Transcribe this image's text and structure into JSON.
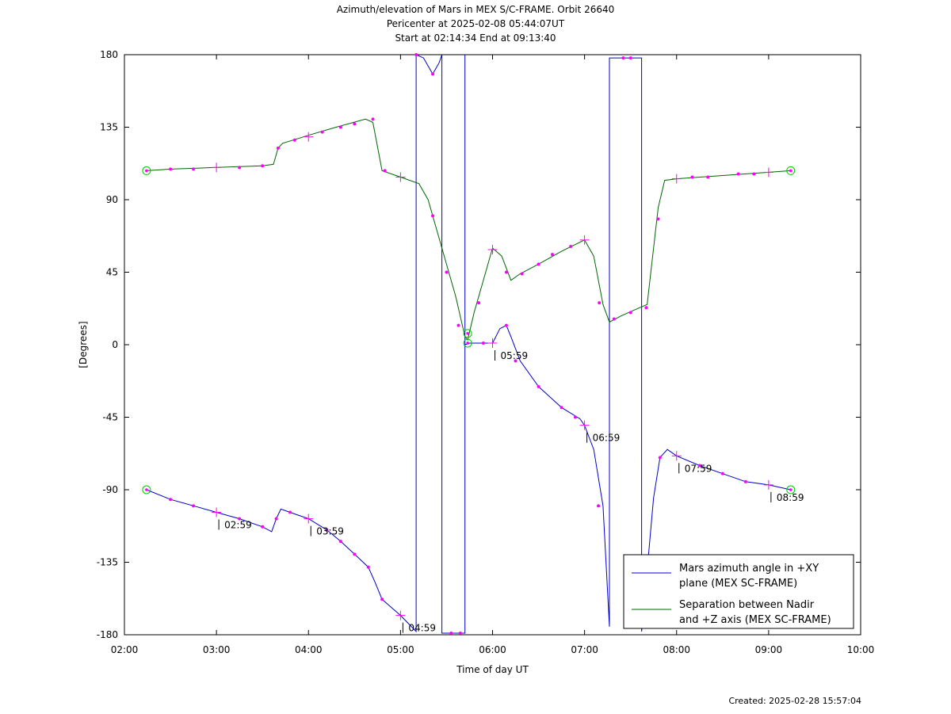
{
  "title_lines": [
    "Azimuth/elevation of Mars in MEX S/C-FRAME.  Orbit 26640",
    "Pericenter at 2025-02-08 05:44:07UT",
    "Start at 02:14:34 End at 09:13:40"
  ],
  "created": "Created: 2025-02-28 15:57:04",
  "colors": {
    "azimuth": "#0000cc",
    "separation": "#006600",
    "marker": "#ff00ff",
    "endpoint": "#00cc00"
  },
  "chart_data": {
    "type": "line",
    "title": "Azimuth/elevation of Mars in MEX S/C-FRAME.  Orbit 26640",
    "xlabel": "Time of day UT",
    "ylabel": "[Degrees]",
    "xlim": [
      2.0,
      10.0
    ],
    "ylim": [
      -180,
      180
    ],
    "x_ticks": [
      {
        "v": 2,
        "label": "02:00"
      },
      {
        "v": 3,
        "label": "03:00"
      },
      {
        "v": 4,
        "label": "04:00"
      },
      {
        "v": 5,
        "label": "05:00"
      },
      {
        "v": 6,
        "label": "06:00"
      },
      {
        "v": 7,
        "label": "07:00"
      },
      {
        "v": 8,
        "label": "08:00"
      },
      {
        "v": 9,
        "label": "09:00"
      },
      {
        "v": 10,
        "label": "10:00"
      }
    ],
    "y_ticks": [
      {
        "v": 180,
        "label": "180"
      },
      {
        "v": 135,
        "label": "135"
      },
      {
        "v": 90,
        "label": "90"
      },
      {
        "v": 45,
        "label": "45"
      },
      {
        "v": 0,
        "label": "0"
      },
      {
        "v": -45,
        "label": "-45"
      },
      {
        "v": -90,
        "label": "-90"
      },
      {
        "v": -135,
        "label": "-135"
      },
      {
        "v": -180,
        "label": "-180"
      }
    ],
    "legend_position": "bottom-right",
    "series": [
      {
        "name": "Mars azimuth angle in +XY plane (MEX SC-FRAME)",
        "legend_lines": [
          "Mars azimuth angle in +XY",
          "plane (MEX SC-FRAME)"
        ],
        "color": "#0000cc",
        "points": [
          [
            2.24,
            -90
          ],
          [
            2.5,
            -96
          ],
          [
            2.75,
            -100
          ],
          [
            3.0,
            -104
          ],
          [
            3.25,
            -108
          ],
          [
            3.5,
            -113
          ],
          [
            3.6,
            -116
          ],
          [
            3.65,
            -108
          ],
          [
            3.7,
            -102
          ],
          [
            3.8,
            -104
          ],
          [
            4.0,
            -108
          ],
          [
            4.2,
            -115
          ],
          [
            4.35,
            -122
          ],
          [
            4.5,
            -130
          ],
          [
            4.65,
            -138
          ],
          [
            4.72,
            -147
          ],
          [
            4.8,
            -158
          ],
          [
            5.0,
            -168
          ],
          [
            5.17,
            -178
          ],
          [
            5.17,
            180
          ],
          [
            5.25,
            178
          ],
          [
            5.35,
            168
          ],
          [
            5.42,
            175
          ],
          [
            5.45,
            180
          ],
          [
            5.45,
            -179
          ],
          [
            5.55,
            -179
          ],
          [
            5.65,
            -179
          ],
          [
            5.7,
            -179
          ],
          [
            5.7,
            180
          ],
          [
            5.7,
            0
          ],
          [
            5.75,
            1
          ],
          [
            5.9,
            1
          ],
          [
            6.0,
            1
          ],
          [
            6.08,
            10
          ],
          [
            6.15,
            12
          ],
          [
            6.2,
            5
          ],
          [
            6.3,
            -10
          ],
          [
            6.5,
            -26
          ],
          [
            6.75,
            -39
          ],
          [
            6.95,
            -46
          ],
          [
            7.0,
            -50
          ],
          [
            7.1,
            -65
          ],
          [
            7.2,
            -100
          ],
          [
            7.27,
            -175
          ],
          [
            7.27,
            178
          ],
          [
            7.5,
            178
          ],
          [
            7.62,
            178
          ],
          [
            7.62,
            -178
          ],
          [
            7.68,
            -140
          ],
          [
            7.75,
            -95
          ],
          [
            7.82,
            -70
          ],
          [
            7.9,
            -65
          ],
          [
            8.0,
            -69
          ],
          [
            8.25,
            -75
          ],
          [
            8.5,
            -80
          ],
          [
            8.75,
            -85
          ],
          [
            9.0,
            -87
          ],
          [
            9.24,
            -90
          ]
        ],
        "markers": [
          [
            2.5,
            -96
          ],
          [
            2.75,
            -100
          ],
          [
            3.25,
            -108
          ],
          [
            3.5,
            -113
          ],
          [
            3.65,
            -108
          ],
          [
            3.8,
            -104
          ],
          [
            4.2,
            -115
          ],
          [
            4.35,
            -122
          ],
          [
            4.5,
            -130
          ],
          [
            4.65,
            -138
          ],
          [
            4.8,
            -158
          ],
          [
            5.17,
            180
          ],
          [
            5.35,
            168
          ],
          [
            5.55,
            -179
          ],
          [
            5.65,
            -179
          ],
          [
            5.9,
            1
          ],
          [
            6.15,
            12
          ],
          [
            6.25,
            -10
          ],
          [
            6.5,
            -26
          ],
          [
            6.75,
            -39
          ],
          [
            6.9,
            -45
          ],
          [
            7.15,
            -100
          ],
          [
            7.42,
            178
          ],
          [
            7.5,
            178
          ],
          [
            7.82,
            -70
          ],
          [
            8.25,
            -75
          ],
          [
            8.5,
            -80
          ],
          [
            8.75,
            -85
          ]
        ],
        "hour_marks": [
          {
            "x": 3.0,
            "y": -104,
            "label": "02:59"
          },
          {
            "x": 4.0,
            "y": -108,
            "label": "03:59"
          },
          {
            "x": 5.0,
            "y": -168,
            "label": "04:59"
          },
          {
            "x": 6.0,
            "y": 1,
            "label": "05:59"
          },
          {
            "x": 7.0,
            "y": -50,
            "label": "06:59"
          },
          {
            "x": 8.0,
            "y": -69,
            "label": "07:59"
          },
          {
            "x": 9.0,
            "y": -87,
            "label": "08:59"
          }
        ]
      },
      {
        "name": "Separation between Nadir and +Z axis (MEX SC-FRAME)",
        "legend_lines": [
          "Separation between Nadir",
          "and +Z axis (MEX SC-FRAME)"
        ],
        "color": "#006600",
        "points": [
          [
            2.24,
            108
          ],
          [
            2.5,
            109
          ],
          [
            3.0,
            110
          ],
          [
            3.5,
            111
          ],
          [
            3.62,
            112
          ],
          [
            3.67,
            122
          ],
          [
            3.72,
            125
          ],
          [
            4.0,
            130
          ],
          [
            4.3,
            135
          ],
          [
            4.62,
            140
          ],
          [
            4.7,
            138
          ],
          [
            4.8,
            108
          ],
          [
            5.0,
            104
          ],
          [
            5.2,
            100
          ],
          [
            5.3,
            90
          ],
          [
            5.45,
            60
          ],
          [
            5.6,
            30
          ],
          [
            5.7,
            5
          ],
          [
            5.73,
            3
          ],
          [
            5.8,
            20
          ],
          [
            5.9,
            40
          ],
          [
            6.0,
            60
          ],
          [
            6.1,
            55
          ],
          [
            6.2,
            40
          ],
          [
            6.3,
            44
          ],
          [
            6.5,
            50
          ],
          [
            6.75,
            58
          ],
          [
            7.0,
            65
          ],
          [
            7.1,
            55
          ],
          [
            7.2,
            25
          ],
          [
            7.27,
            14
          ],
          [
            7.4,
            18
          ],
          [
            7.6,
            23
          ],
          [
            7.68,
            25
          ],
          [
            7.75,
            60
          ],
          [
            7.8,
            85
          ],
          [
            7.87,
            102
          ],
          [
            8.0,
            103
          ],
          [
            8.5,
            105
          ],
          [
            9.0,
            107
          ],
          [
            9.24,
            108
          ]
        ],
        "markers": [
          [
            2.5,
            109
          ],
          [
            2.75,
            109
          ],
          [
            3.25,
            110
          ],
          [
            3.5,
            111
          ],
          [
            3.67,
            122
          ],
          [
            3.85,
            127
          ],
          [
            4.15,
            132
          ],
          [
            4.35,
            135
          ],
          [
            4.5,
            137
          ],
          [
            4.7,
            140
          ],
          [
            4.83,
            108
          ],
          [
            5.35,
            80
          ],
          [
            5.5,
            45
          ],
          [
            5.63,
            12
          ],
          [
            5.85,
            26
          ],
          [
            6.15,
            45
          ],
          [
            6.32,
            44
          ],
          [
            6.5,
            50
          ],
          [
            6.65,
            56
          ],
          [
            6.85,
            61
          ],
          [
            7.16,
            26
          ],
          [
            7.32,
            16
          ],
          [
            7.5,
            20
          ],
          [
            7.67,
            23
          ],
          [
            7.8,
            78
          ],
          [
            8.17,
            104
          ],
          [
            8.34,
            104
          ],
          [
            8.67,
            106
          ],
          [
            8.84,
            106
          ]
        ],
        "hour_marks": [
          {
            "x": 3.0,
            "y": 110
          },
          {
            "x": 4.0,
            "y": 129
          },
          {
            "x": 5.0,
            "y": 104
          },
          {
            "x": 6.0,
            "y": 59
          },
          {
            "x": 7.0,
            "y": 65
          },
          {
            "x": 8.0,
            "y": 103
          },
          {
            "x": 9.0,
            "y": 107
          }
        ]
      }
    ],
    "endpoints": [
      {
        "x": 2.24,
        "y": -90
      },
      {
        "x": 2.24,
        "y": 108
      },
      {
        "x": 5.73,
        "y": 1
      },
      {
        "x": 5.73,
        "y": 7
      },
      {
        "x": 9.24,
        "y": -90
      },
      {
        "x": 9.24,
        "y": 108
      }
    ]
  }
}
